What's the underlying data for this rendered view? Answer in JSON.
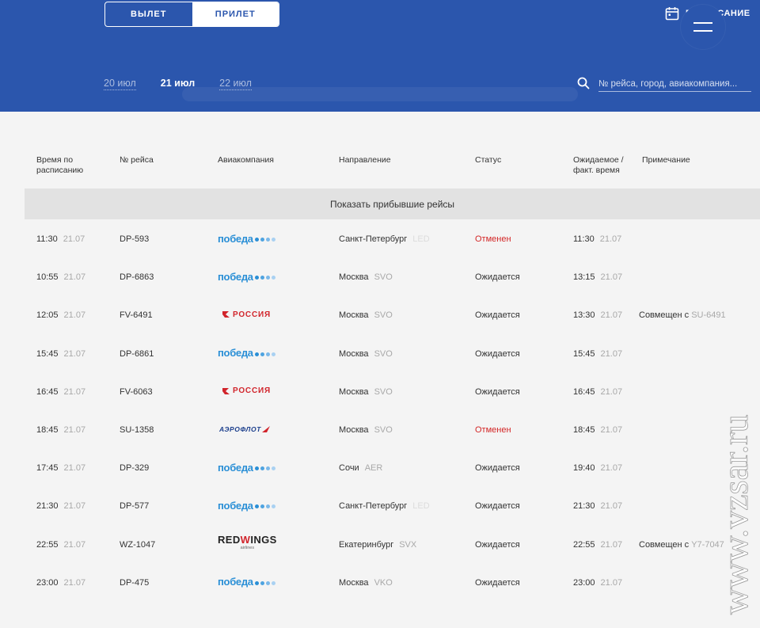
{
  "header": {
    "toggle": {
      "departures": "ВЫЛЕТ",
      "arrivals": "ПРИЛЕТ",
      "active": "arrivals"
    },
    "schedule_link": "РАСПИСАНИЕ",
    "dates": {
      "prev": "20 июл",
      "current": "21 июл",
      "next": "22 июл"
    },
    "search": {
      "placeholder": "№ рейса, город, авиакомпания...",
      "value": ""
    },
    "icons": {
      "calendar": "calendar-icon",
      "search": "search-icon",
      "menu": "hamburger-menu-icon"
    },
    "colors": {
      "header_bg": "#2b56ad",
      "cancelled": "#d32626"
    }
  },
  "columns": {
    "scheduled_l1": "Время по",
    "scheduled_l2": "расписанию",
    "flight": "№ рейса",
    "airline": "Авиакомпания",
    "direction": "Направление",
    "status": "Статус",
    "expected_l1": "Ожидаемое /",
    "expected_l2": "факт. время",
    "note": "Примечание"
  },
  "show_arrived": "Показать прибывшие рейсы",
  "flights": [
    {
      "time": "11:30",
      "date": "21.07",
      "flight": "DP-593",
      "airline": "победа",
      "city": "Санкт-Петербург",
      "code": "LED",
      "status": "Отменен",
      "exp_time": "11:30",
      "exp_date": "21.07",
      "note": ""
    },
    {
      "time": "10:55",
      "date": "21.07",
      "flight": "DP-6863",
      "airline": "победа",
      "city": "Москва",
      "code": "SVO",
      "status": "Ожидается",
      "exp_time": "13:15",
      "exp_date": "21.07",
      "note": ""
    },
    {
      "time": "12:05",
      "date": "21.07",
      "flight": "FV-6491",
      "airline": "РОССИЯ",
      "city": "Москва",
      "code": "SVO",
      "status": "Ожидается",
      "exp_time": "13:30",
      "exp_date": "21.07",
      "note": "Совмещен с",
      "note_code": "SU-6491"
    },
    {
      "time": "15:45",
      "date": "21.07",
      "flight": "DP-6861",
      "airline": "победа",
      "city": "Москва",
      "code": "SVO",
      "status": "Ожидается",
      "exp_time": "15:45",
      "exp_date": "21.07",
      "note": ""
    },
    {
      "time": "16:45",
      "date": "21.07",
      "flight": "FV-6063",
      "airline": "РОССИЯ",
      "city": "Москва",
      "code": "SVO",
      "status": "Ожидается",
      "exp_time": "16:45",
      "exp_date": "21.07",
      "note": ""
    },
    {
      "time": "18:45",
      "date": "21.07",
      "flight": "SU-1358",
      "airline": "АЭРОФЛОТ",
      "city": "Москва",
      "code": "SVO",
      "status": "Отменен",
      "exp_time": "18:45",
      "exp_date": "21.07",
      "note": ""
    },
    {
      "time": "17:45",
      "date": "21.07",
      "flight": "DP-329",
      "airline": "победа",
      "city": "Сочи",
      "code": "AER",
      "status": "Ожидается",
      "exp_time": "19:40",
      "exp_date": "21.07",
      "note": ""
    },
    {
      "time": "21:30",
      "date": "21.07",
      "flight": "DP-577",
      "airline": "победа",
      "city": "Санкт-Петербург",
      "code": "LED",
      "status": "Ожидается",
      "exp_time": "21:30",
      "exp_date": "21.07",
      "note": ""
    },
    {
      "time": "22:55",
      "date": "21.07",
      "flight": "WZ-1047",
      "airline": "REDWINGS",
      "airline_sub": "airlines",
      "city": "Екатеринбург",
      "code": "SVX",
      "status": "Ожидается",
      "exp_time": "22:55",
      "exp_date": "21.07",
      "note": "Совмещен с",
      "note_code": "Y7-7047"
    },
    {
      "time": "23:00",
      "date": "21.07",
      "flight": "DP-475",
      "airline": "победа",
      "city": "Москва",
      "code": "VKO",
      "status": "Ожидается",
      "exp_time": "23:00",
      "exp_date": "21.07",
      "note": ""
    }
  ],
  "watermark": "www.vzsar.ru"
}
